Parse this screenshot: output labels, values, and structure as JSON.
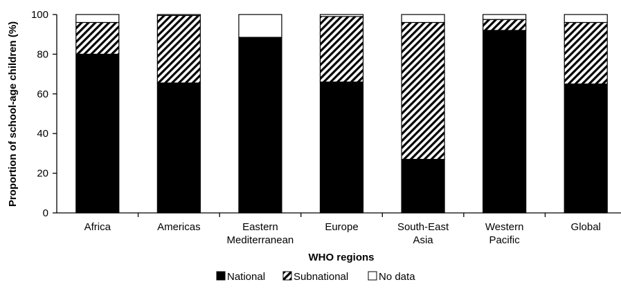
{
  "chart_data": {
    "type": "bar",
    "stacked": true,
    "xlabel": "WHO regions",
    "ylabel": "Proportion of school-age children (%)",
    "ylim": [
      0,
      100
    ],
    "yticks": [
      "0",
      "20",
      "40",
      "60",
      "80",
      "100"
    ],
    "grid": false,
    "legend": "bottom",
    "categories": [
      [
        "Africa"
      ],
      [
        "Americas"
      ],
      [
        "Eastern",
        "Mediterranean"
      ],
      [
        "Europe"
      ],
      [
        "South-East",
        "Asia"
      ],
      [
        "Western",
        "Pacific"
      ],
      [
        "Global"
      ]
    ],
    "series": [
      {
        "name": "National",
        "pattern": "solid",
        "color": "#000000",
        "values": [
          80,
          65.5,
          88.5,
          66,
          27,
          92,
          65
        ]
      },
      {
        "name": "Subnational",
        "pattern": "hatch",
        "color": "#000000",
        "values": [
          16,
          34,
          0,
          33,
          69,
          5.5,
          31
        ]
      },
      {
        "name": "No data",
        "pattern": "empty",
        "color": "#ffffff",
        "values": [
          4,
          0.5,
          11.5,
          1,
          4,
          2.5,
          4
        ]
      }
    ]
  }
}
